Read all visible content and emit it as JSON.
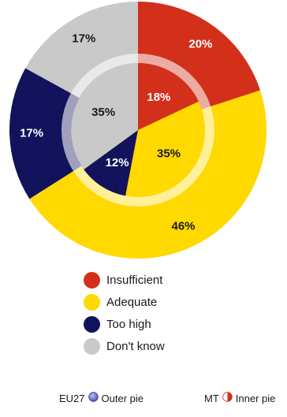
{
  "chart_data": {
    "type": "pie",
    "categories": [
      "Insufficient",
      "Adequate",
      "Too high",
      "Don't know"
    ],
    "colors": [
      "#d3301b",
      "#ffd900",
      "#12135c",
      "#c9c9c9"
    ],
    "series": [
      {
        "name": "EU27",
        "ring": "outer",
        "values": [
          20,
          46,
          17,
          17
        ],
        "labels": [
          "20%",
          "46%",
          "17%",
          "17%"
        ]
      },
      {
        "name": "MT",
        "ring": "inner",
        "values": [
          18,
          35,
          12,
          35
        ],
        "labels": [
          "18%",
          "35%",
          "12%",
          "35%"
        ]
      }
    ]
  },
  "legend": {
    "items": [
      {
        "label": "Insufficient",
        "color": "#d3301b"
      },
      {
        "label": "Adequate",
        "color": "#ffd900"
      },
      {
        "label": "Too high",
        "color": "#12135c"
      },
      {
        "label": "Don't know",
        "color": "#c9c9c9"
      }
    ]
  },
  "footer": {
    "outer": {
      "code": "EU27",
      "label": "Outer pie",
      "icon": "blue-circle-icon"
    },
    "inner": {
      "code": "MT",
      "label": "Inner pie",
      "icon": "half-red-circle-icon"
    }
  }
}
